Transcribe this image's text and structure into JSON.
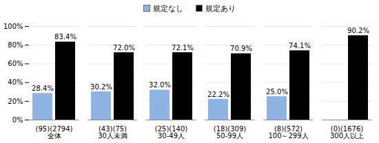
{
  "chart_data": {
    "type": "bar",
    "categories": [
      "(95)(2794)\n全体",
      "(43)(75)\n30人未満",
      "(25)(140)\n30-49人",
      "(18)(309)\n50-99人",
      "(8)(572)\n100～299人",
      "(0)(1676)\n300人以上"
    ],
    "series": [
      {
        "name": "規定なし",
        "color": "#8db4e2",
        "values": [
          28.4,
          30.2,
          32.0,
          22.2,
          25.0,
          null
        ],
        "value_labels": [
          "28.4%",
          "30.2%",
          "32.0%",
          "22.2%",
          "25.0%",
          null
        ]
      },
      {
        "name": "規定あり",
        "color": "#000000",
        "values": [
          83.4,
          72.0,
          72.1,
          70.9,
          74.1,
          90.2
        ],
        "value_labels": [
          "83.4%",
          "72.0%",
          "72.1%",
          "70.9%",
          "74.1%",
          "90.2%"
        ]
      }
    ],
    "ylim": [
      0,
      100
    ],
    "yticks": [
      {
        "value": 0,
        "label": "0%"
      },
      {
        "value": 20,
        "label": "20%"
      },
      {
        "value": 40,
        "label": "40%"
      },
      {
        "value": 60,
        "label": "60%"
      },
      {
        "value": 80,
        "label": "80%"
      },
      {
        "value": 100,
        "label": "100%"
      }
    ],
    "grid": true,
    "legend": "top",
    "data_labels": true
  }
}
